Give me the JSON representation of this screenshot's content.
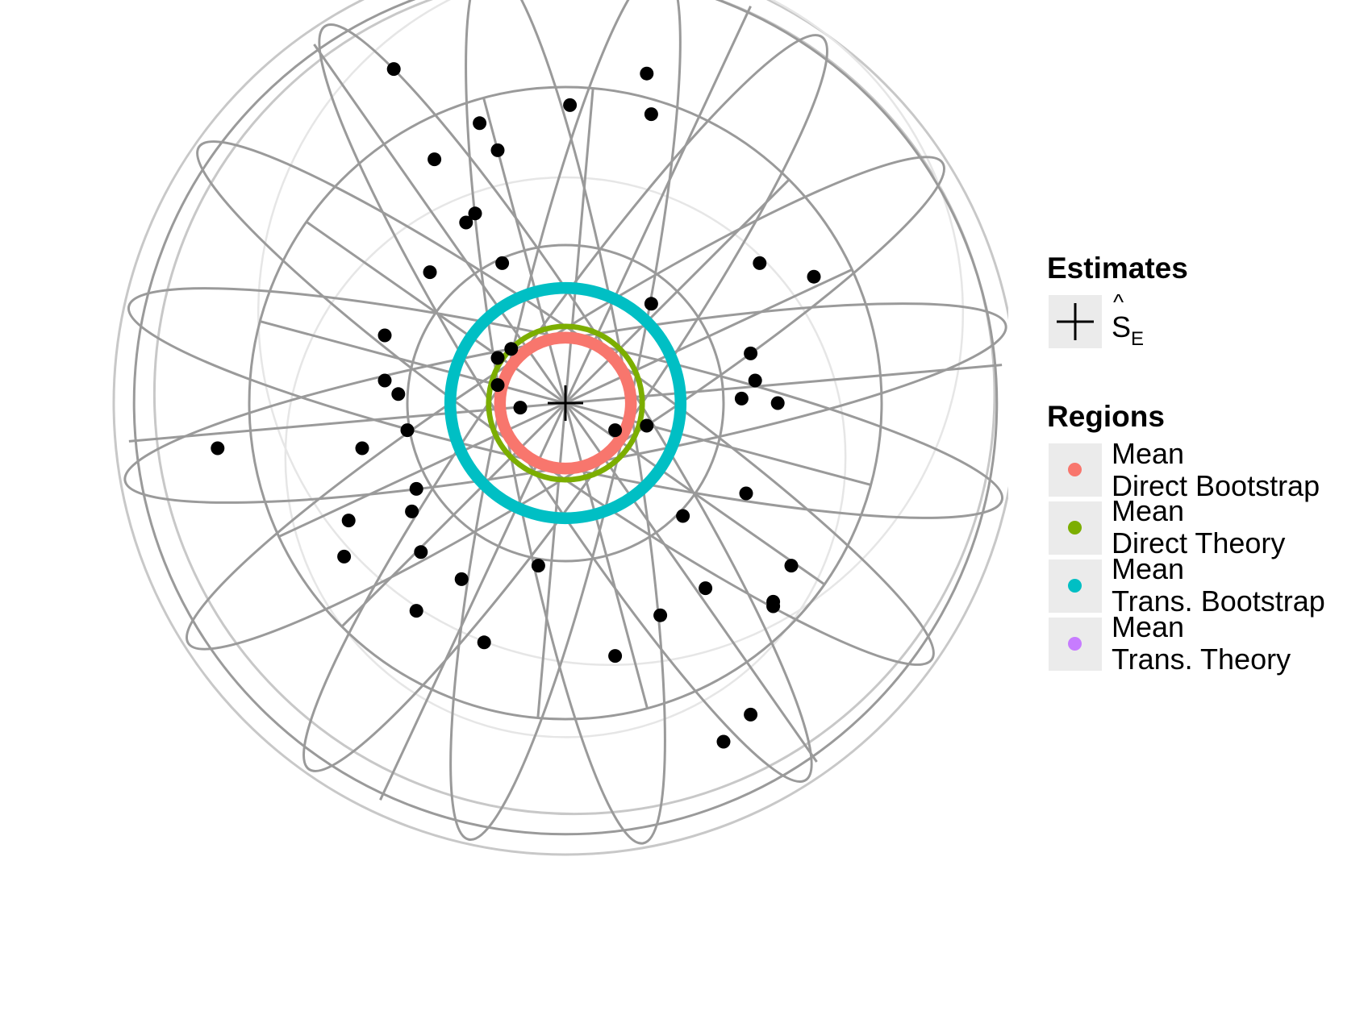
{
  "chart_data": {
    "type": "scatter",
    "projection": "equal-area stereographic (polar) plot",
    "grid": true,
    "legend_position": "right",
    "center_estimate": {
      "name": "Ŝ_E",
      "symbol": "cross"
    },
    "points": [
      [
        -0.38,
        0.74
      ],
      [
        0.18,
        0.73
      ],
      [
        0.01,
        0.66
      ],
      [
        -0.19,
        0.62
      ],
      [
        0.19,
        0.64
      ],
      [
        -0.15,
        0.56
      ],
      [
        -0.29,
        0.54
      ],
      [
        -0.2,
        0.42
      ],
      [
        -0.22,
        0.4
      ],
      [
        -0.14,
        0.31
      ],
      [
        -0.3,
        0.29
      ],
      [
        0.19,
        0.22
      ],
      [
        -0.4,
        0.15
      ],
      [
        -0.4,
        0.05
      ],
      [
        -0.37,
        0.02
      ],
      [
        -0.15,
        0.04
      ],
      [
        -0.1,
        -0.01
      ],
      [
        -0.35,
        -0.06
      ],
      [
        -0.45,
        -0.1
      ],
      [
        -0.77,
        -0.1
      ],
      [
        0.43,
        0.31
      ],
      [
        0.55,
        0.28
      ],
      [
        0.41,
        0.11
      ],
      [
        0.42,
        0.05
      ],
      [
        0.39,
        0.01
      ],
      [
        0.47,
        0.0
      ],
      [
        0.18,
        -0.05
      ],
      [
        0.11,
        -0.06
      ],
      [
        -0.33,
        -0.19
      ],
      [
        -0.34,
        -0.24
      ],
      [
        -0.48,
        -0.26
      ],
      [
        -0.49,
        -0.34
      ],
      [
        -0.32,
        -0.33
      ],
      [
        0.4,
        -0.2
      ],
      [
        0.26,
        -0.25
      ],
      [
        -0.06,
        -0.36
      ],
      [
        -0.23,
        -0.39
      ],
      [
        0.31,
        -0.41
      ],
      [
        0.21,
        -0.47
      ],
      [
        0.5,
        -0.36
      ],
      [
        0.46,
        -0.45
      ],
      [
        0.46,
        -0.44
      ],
      [
        -0.33,
        -0.46
      ],
      [
        -0.18,
        -0.53
      ],
      [
        0.11,
        -0.56
      ],
      [
        0.41,
        -0.69
      ],
      [
        0.35,
        -0.75
      ],
      [
        -0.15,
        0.1
      ],
      [
        -0.12,
        0.12
      ]
    ],
    "series": [
      {
        "name": "Mean\nDirect Bootstrap",
        "color": "#F8766D",
        "radius": 0.145,
        "width": 0.026
      },
      {
        "name": "Mean\nDirect Theory",
        "color": "#7CAE00",
        "radius": 0.17,
        "width": 0.012
      },
      {
        "name": "Mean\nTrans. Bootstrap",
        "color": "#00BFC4",
        "radius": 0.255,
        "width": 0.026
      },
      {
        "name": "Mean\nTrans. Theory",
        "color": "#C77CFF",
        "radius": 0.0,
        "width": 0.0
      }
    ]
  },
  "legend": {
    "estimates_title": "Estimates",
    "estimate_label_base": "S",
    "estimate_label_hat": "^",
    "estimate_label_sub": "E",
    "regions_title": "Regions",
    "regions": [
      {
        "line1": "Mean",
        "line2": "Direct Bootstrap",
        "color": "#F8766D"
      },
      {
        "line1": "Mean",
        "line2": "Direct Theory",
        "color": "#7CAE00"
      },
      {
        "line1": "Mean",
        "line2": "Trans. Bootstrap",
        "color": "#00BFC4"
      },
      {
        "line1": "Mean",
        "line2": "Trans. Theory",
        "color": "#C77CFF"
      }
    ]
  }
}
